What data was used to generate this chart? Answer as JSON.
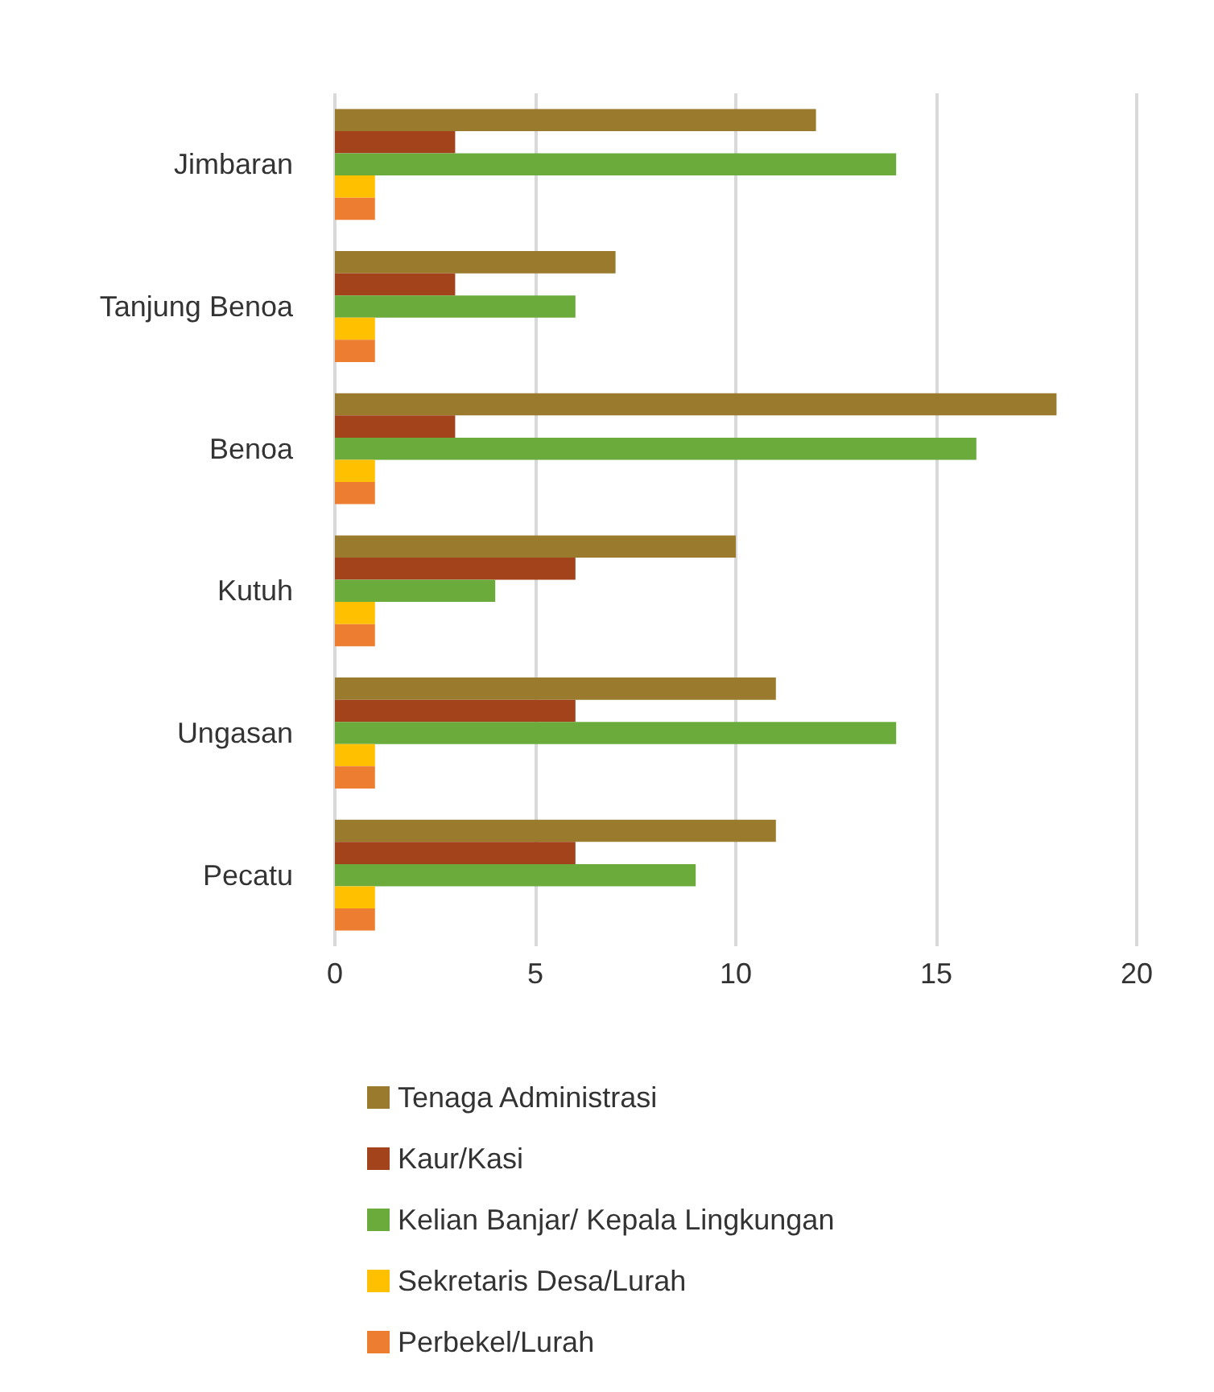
{
  "chart_data": {
    "type": "bar",
    "orientation": "horizontal",
    "categories": [
      "Jimbaran",
      "Tanjung Benoa",
      "Benoa",
      "Kutuh",
      "Ungasan",
      "Pecatu"
    ],
    "series": [
      {
        "name": "Tenaga Administrasi",
        "color": "#9a7b2e",
        "values": [
          12,
          7,
          18,
          10,
          11,
          11
        ]
      },
      {
        "name": "Kaur/Kasi",
        "color": "#a3431c",
        "values": [
          3,
          3,
          3,
          6,
          6,
          6
        ]
      },
      {
        "name": "Kelian Banjar/ Kepala Lingkungan",
        "color": "#6aab3c",
        "values": [
          14,
          6,
          16,
          4,
          14,
          9
        ]
      },
      {
        "name": "Sekretaris Desa/Lurah",
        "color": "#ffc000",
        "values": [
          1,
          1,
          1,
          1,
          1,
          1
        ]
      },
      {
        "name": "Perbekel/Lurah",
        "color": "#ed7d31",
        "values": [
          1,
          1,
          1,
          1,
          1,
          1
        ]
      }
    ],
    "xlim": [
      0,
      20
    ],
    "xticks": [
      0,
      5,
      10,
      15,
      20
    ],
    "grid": "x",
    "legend": "bottom"
  }
}
